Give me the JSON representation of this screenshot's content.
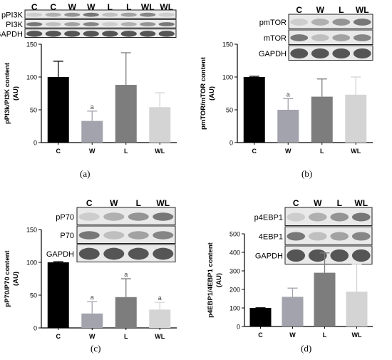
{
  "chart_data": [
    {
      "id": "a",
      "type": "bar",
      "panel_label": "(a)",
      "ylabel": "pPI3k/PI3K content\n(AU)",
      "ylim": [
        0,
        150
      ],
      "yticks": [
        0,
        50,
        100,
        150
      ],
      "categories": [
        "C",
        "W",
        "L",
        "WL"
      ],
      "values": [
        100,
        33,
        88,
        54
      ],
      "errors": [
        24,
        15,
        49,
        22
      ],
      "annotations": [
        "",
        "a",
        "",
        ""
      ],
      "bar_colors": [
        "#000000",
        "#a3a3ad",
        "#7d7d7d",
        "#d4d4d4"
      ],
      "blot": {
        "lane_labels": [
          "C",
          "C",
          "W",
          "W",
          "L",
          "L",
          "WL",
          "WL"
        ],
        "rows": [
          "pPI3K",
          "PI3K",
          "GAPDH"
        ]
      }
    },
    {
      "id": "b",
      "type": "bar",
      "panel_label": "(b)",
      "ylabel": "pmTOR/mTOR content\n(AU)",
      "ylim": [
        0,
        150
      ],
      "yticks": [
        0,
        50,
        100,
        150
      ],
      "categories": [
        "C",
        "W",
        "L",
        "WL"
      ],
      "values": [
        100,
        50,
        70,
        73
      ],
      "errors": [
        1,
        17,
        27,
        27
      ],
      "annotations": [
        "",
        "a",
        "",
        ""
      ],
      "bar_colors": [
        "#000000",
        "#a3a3ad",
        "#7d7d7d",
        "#d4d4d4"
      ],
      "blot": {
        "lane_labels": [
          "C",
          "W",
          "L",
          "WL"
        ],
        "rows": [
          "pmTOR",
          "mTOR",
          "GAPDH"
        ]
      }
    },
    {
      "id": "c",
      "type": "bar",
      "panel_label": "(c)",
      "ylabel": "pP70/P70 content\n(AU)",
      "ylim": [
        0,
        150
      ],
      "yticks": [
        0,
        50,
        100,
        150
      ],
      "categories": [
        "C",
        "W",
        "L",
        "WL"
      ],
      "values": [
        100,
        22,
        47,
        28
      ],
      "errors": [
        1,
        18,
        28,
        11
      ],
      "annotations": [
        "",
        "a",
        "a",
        "a"
      ],
      "bar_colors": [
        "#000000",
        "#a3a3ad",
        "#7d7d7d",
        "#d4d4d4"
      ],
      "blot": {
        "lane_labels": [
          "C",
          "W",
          "L",
          "WL"
        ],
        "rows": [
          "pP70",
          "P70",
          "GAPDH"
        ]
      }
    },
    {
      "id": "d",
      "type": "bar",
      "panel_label": "(d)",
      "ylabel": "p4EBP1/4EBP1 content\n(AU)",
      "ylim": [
        0,
        500
      ],
      "yticks": [
        0,
        100,
        200,
        300,
        400,
        500
      ],
      "categories": [
        "C",
        "W",
        "L",
        "WL"
      ],
      "values": [
        100,
        160,
        290,
        188
      ],
      "errors": [
        1,
        47,
        107,
        148
      ],
      "annotations": [
        "",
        "",
        "",
        ""
      ],
      "bar_colors": [
        "#000000",
        "#a3a3ad",
        "#7d7d7d",
        "#d4d4d4"
      ],
      "blot": {
        "lane_labels": [
          "C",
          "W",
          "L",
          "WL"
        ],
        "rows": [
          "p4EBP1",
          "4EBP1",
          "GAPDH"
        ]
      }
    }
  ]
}
